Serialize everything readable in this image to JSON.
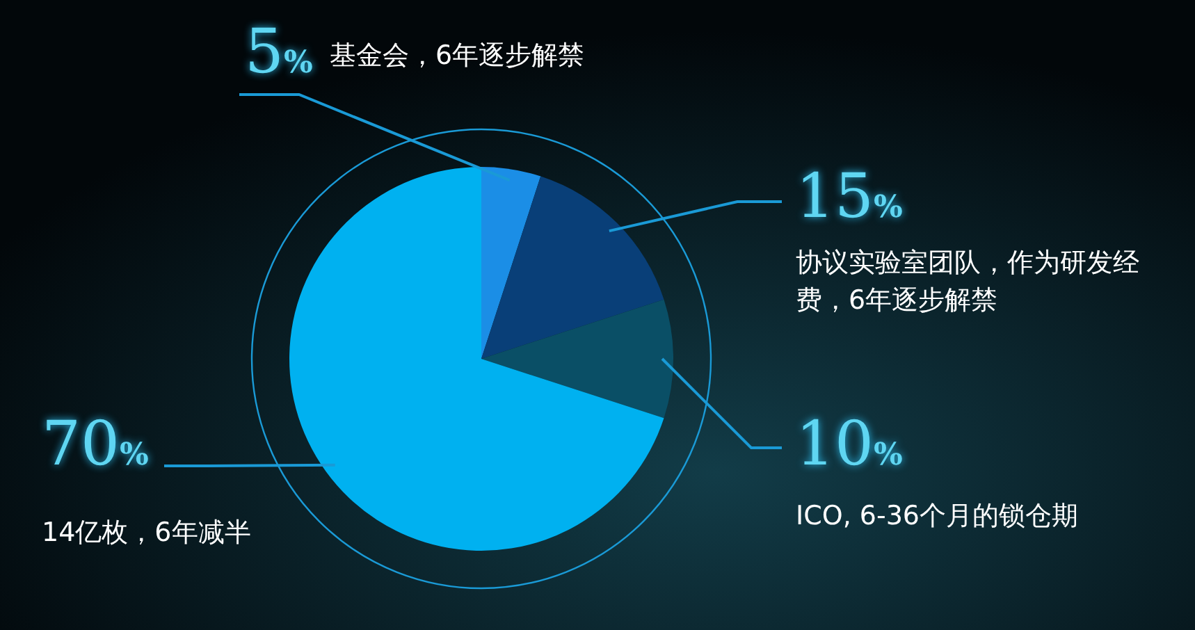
{
  "chart_data": {
    "type": "pie",
    "categories": [
      "基金会，6年逐步解禁",
      "协议实验室团队，作为研发经费，6年逐步解禁",
      "ICO, 6-36个月的锁仓期",
      "14亿枚，6年减半"
    ],
    "values": [
      5,
      15,
      10,
      70
    ],
    "colors": [
      "#1b8ee6",
      "#093f78",
      "#0a4f66",
      "#00b1f0"
    ],
    "value_labels": [
      "5%",
      "15%",
      "10%",
      "70%"
    ]
  }
}
